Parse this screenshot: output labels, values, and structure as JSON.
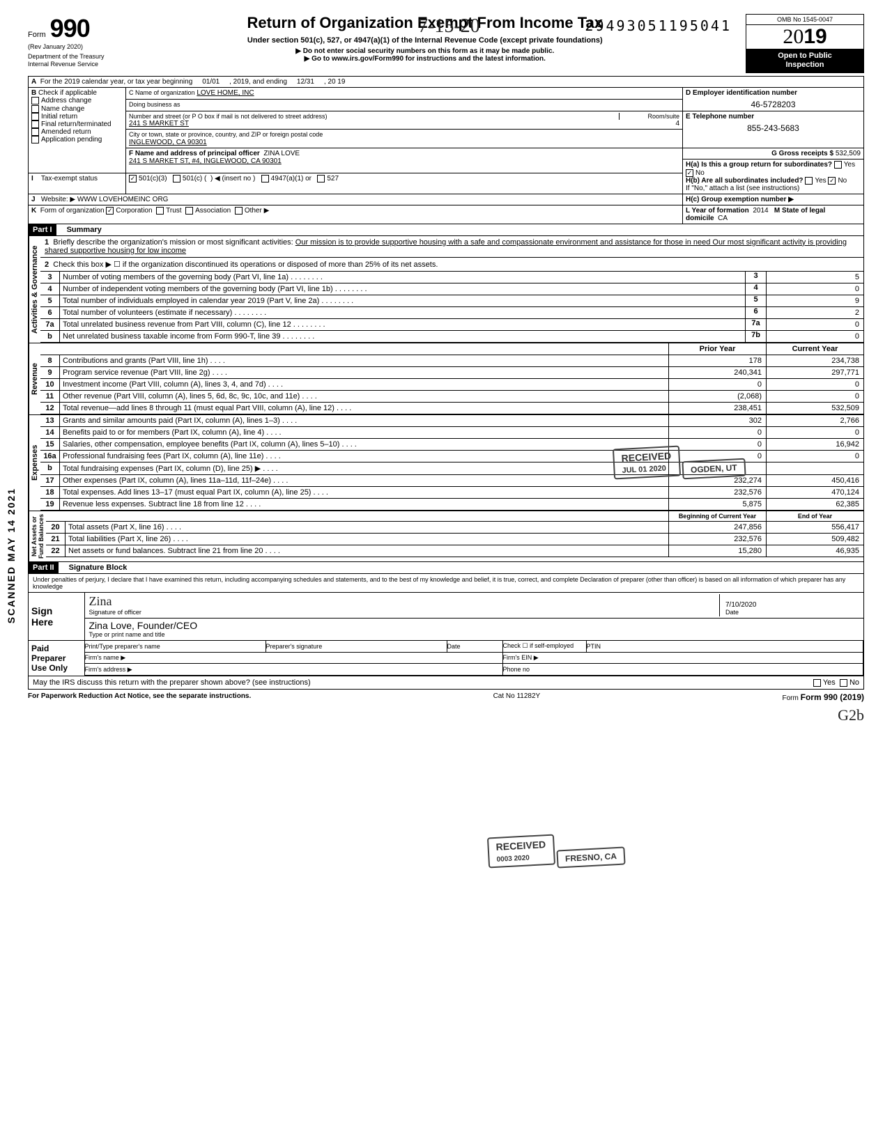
{
  "serial": "29493051195041",
  "hand_date": "7-15-20",
  "form": {
    "label": "Form",
    "number": "990",
    "rev": "(Rev  January 2020)",
    "dept": "Department of the Treasury\nInternal Revenue Service"
  },
  "header": {
    "title": "Return of Organization Exempt From Income Tax",
    "subtitle": "Under section 501(c), 527, or 4947(a)(1) of the Internal Revenue Code (except private foundations)",
    "line2": "▶ Do not enter social security numbers on this form as it may be made public.",
    "line3": "▶ Go to www.irs.gov/Form990 for instructions and the latest information."
  },
  "right": {
    "omb": "OMB No 1545-0047",
    "year_prefix": "20",
    "year_suffix": "19",
    "open": "Open to Public\nInspection"
  },
  "rowA": {
    "label": "A",
    "text1": "For the 2019 calendar year, or tax year beginning",
    "begin": "01/01",
    "text2": ", 2019, and ending",
    "end": "12/31",
    "text3": ", 20",
    "yr": "19"
  },
  "rowB": {
    "label": "B",
    "check_label": "Check if applicable",
    "options": [
      "Address change",
      "Name change",
      "Initial return",
      "Final return/terminated",
      "Amended return",
      "Application pending"
    ]
  },
  "rowC": {
    "label": "C Name of organization",
    "org": "LOVE HOME, INC",
    "dba_label": "Doing business as",
    "street_label": "Number and street (or P O  box if mail is not delivered to street address)",
    "street": "241 S MARKET ST",
    "room_label": "Room/suite",
    "room": "4",
    "city_label": "City or town, state or province, country, and ZIP or foreign postal code",
    "city": "INGLEWOOD, CA 90301"
  },
  "rowD": {
    "label": "D Employer identification number",
    "ein": "46-5728203"
  },
  "rowE": {
    "label": "E Telephone number",
    "phone": "855-243-5683"
  },
  "rowG": {
    "label": "G Gross receipts $",
    "amount": "532,509"
  },
  "rowF": {
    "label": "F Name and address of principal officer",
    "name": "ZINA LOVE",
    "addr": "241 S  MARKET ST, #4, INGLEWOOD, CA 90301"
  },
  "rowH": {
    "ha": "H(a) Is this a group return for subordinates?",
    "hb": "H(b) Are all subordinates included?",
    "hb_note": "If \"No,\" attach a list (see instructions)",
    "hc": "H(c) Group exemption number ▶",
    "yes": "Yes",
    "no": "No"
  },
  "rowI": {
    "label": "I",
    "text": "Tax-exempt status",
    "opt1": "501(c)(3)",
    "opt2": "501(c) (",
    "opt2b": ") ◀ (insert no )",
    "opt3": "4947(a)(1) or",
    "opt4": "527"
  },
  "rowJ": {
    "label": "J",
    "text": "Website: ▶",
    "url": "WWW LOVEHOMEINC ORG"
  },
  "rowK": {
    "label": "K",
    "text": "Form of organization",
    "opts": [
      "Corporation",
      "Trust",
      "Association",
      "Other ▶"
    ],
    "l_label": "L Year of formation",
    "l_val": "2014",
    "m_label": "M State of legal domicile",
    "m_val": "CA"
  },
  "part1": {
    "header": "Part I",
    "title": "Summary",
    "side_labels": [
      "Activities & Governance",
      "Revenue",
      "Expenses",
      "Net Assets or\nFund Balances"
    ]
  },
  "summary": {
    "line1_label": "Briefly describe the organization's mission or most significant activities:",
    "line1_text": "Our mission is to provide supportive housing with a safe and compassionate environment and assistance for those in need  Our most significant activity is providing shared supportive housing for low income",
    "line2": "Check this box ▶ ☐ if the organization discontinued its operations or disposed of more than 25% of its net assets.",
    "rows_gov": [
      {
        "n": "3",
        "d": "Number of voting members of the governing body (Part VI, line 1a)",
        "box": "3",
        "v": "5"
      },
      {
        "n": "4",
        "d": "Number of independent voting members of the governing body (Part VI, line 1b)",
        "box": "4",
        "v": "0"
      },
      {
        "n": "5",
        "d": "Total number of individuals employed in calendar year 2019 (Part V, line 2a)",
        "box": "5",
        "v": "9"
      },
      {
        "n": "6",
        "d": "Total number of volunteers (estimate if necessary)",
        "box": "6",
        "v": "2"
      },
      {
        "n": "7a",
        "d": "Total unrelated business revenue from Part VIII, column (C), line 12",
        "box": "7a",
        "v": "0"
      },
      {
        "n": "b",
        "d": "Net unrelated business taxable income from Form 990-T, line 39",
        "box": "7b",
        "v": "0"
      }
    ],
    "col_prior": "Prior Year",
    "col_current": "Current Year",
    "rows_rev": [
      {
        "n": "8",
        "d": "Contributions and grants (Part VIII, line 1h)",
        "p": "178",
        "c": "234,738"
      },
      {
        "n": "9",
        "d": "Program service revenue (Part VIII, line 2g)",
        "p": "240,341",
        "c": "297,771"
      },
      {
        "n": "10",
        "d": "Investment income (Part VIII, column (A), lines 3, 4, and 7d)",
        "p": "0",
        "c": "0"
      },
      {
        "n": "11",
        "d": "Other revenue (Part VIII, column (A), lines 5, 6d, 8c, 9c, 10c, and 11e)",
        "p": "(2,068)",
        "c": "0"
      },
      {
        "n": "12",
        "d": "Total revenue—add lines 8 through 11 (must equal Part VIII, column (A), line 12)",
        "p": "238,451",
        "c": "532,509"
      }
    ],
    "rows_exp": [
      {
        "n": "13",
        "d": "Grants and similar amounts paid (Part IX, column (A), lines 1–3)",
        "p": "302",
        "c": "2,766"
      },
      {
        "n": "14",
        "d": "Benefits paid to or for members (Part IX, column (A), line 4)",
        "p": "0",
        "c": "0"
      },
      {
        "n": "15",
        "d": "Salaries, other compensation, employee benefits (Part IX, column (A), lines 5–10)",
        "p": "0",
        "c": "16,942"
      },
      {
        "n": "16a",
        "d": "Professional fundraising fees (Part IX, column (A), line 11e)",
        "p": "0",
        "c": "0"
      },
      {
        "n": "b",
        "d": "Total fundraising expenses (Part IX, column (D), line 25) ▶",
        "p": "",
        "c": ""
      },
      {
        "n": "17",
        "d": "Other expenses (Part IX, column (A), lines 11a–11d, 11f–24e)",
        "p": "232,274",
        "c": "450,416"
      },
      {
        "n": "18",
        "d": "Total expenses. Add lines 13–17 (must equal Part IX, column (A), line 25)",
        "p": "232,576",
        "c": "470,124"
      },
      {
        "n": "19",
        "d": "Revenue less expenses. Subtract line 18 from line 12",
        "p": "5,875",
        "c": "62,385"
      }
    ],
    "col_begin": "Beginning of Current Year",
    "col_end": "End of Year",
    "rows_net": [
      {
        "n": "20",
        "d": "Total assets (Part X, line 16)",
        "p": "247,856",
        "c": "556,417"
      },
      {
        "n": "21",
        "d": "Total liabilities (Part X, line 26)",
        "p": "232,576",
        "c": "509,482"
      },
      {
        "n": "22",
        "d": "Net assets or fund balances. Subtract line 21 from line 20",
        "p": "15,280",
        "c": "46,935"
      }
    ]
  },
  "stamps": {
    "received1": "RECEIVED",
    "received1_sub": "JUL 01 2020",
    "ogden": "OGDEN, UT",
    "received2": "RECEIVED",
    "received2_sub": "0003 2020",
    "fresno": "FRESNO, CA"
  },
  "sidebar_stamp": "SCANNED MAY 14 2021",
  "part2": {
    "header": "Part II",
    "title": "Signature Block",
    "declaration": "Under penalties of perjury, I declare that I have examined this return, including accompanying schedules and statements, and to the best of my knowledge and belief, it is true, correct, and complete  Declaration of preparer (other than officer) is based on all information of which preparer has any knowledge"
  },
  "sign": {
    "sign_here": "Sign\nHere",
    "sig_line": "Signature of officer",
    "date_label": "Date",
    "date": "7/10/2020",
    "name": "Zina Love, Founder/CEO",
    "name_label": "Type or print name and title",
    "sig_handwritten": "Zina"
  },
  "paid": {
    "label": "Paid\nPreparer\nUse Only",
    "col1": "Print/Type preparer's name",
    "col2": "Preparer's signature",
    "col3": "Date",
    "check": "Check ☐ if self-employed",
    "ptin": "PTIN",
    "firm_name": "Firm's name ▶",
    "firm_ein": "Firm's EIN ▶",
    "firm_addr": "Firm's address ▶",
    "phone": "Phone no"
  },
  "footer": {
    "discuss": "May the IRS discuss this return with the preparer shown above? (see instructions)",
    "yes": "Yes",
    "no": "No",
    "pra": "For Paperwork Reduction Act Notice, see the separate instructions.",
    "cat": "Cat  No  11282Y",
    "form": "Form 990 (2019)",
    "hand": "G2b"
  }
}
